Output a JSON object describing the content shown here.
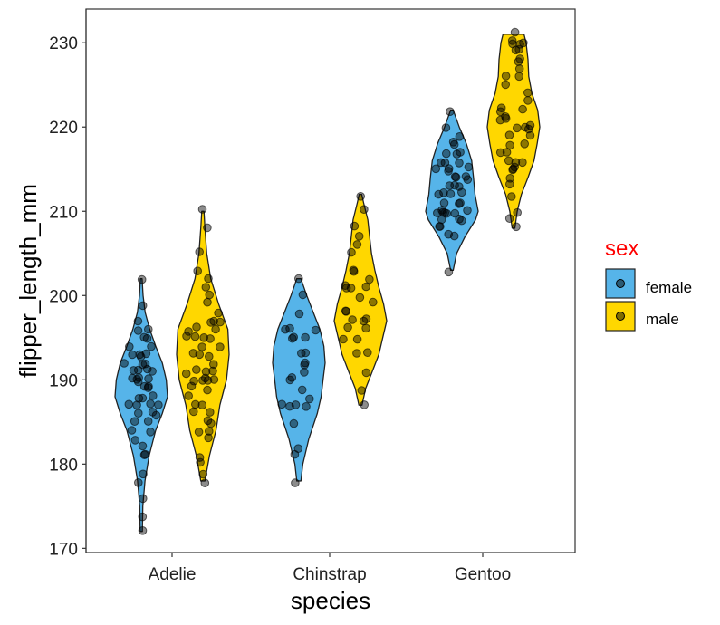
{
  "chart_data": {
    "type": "violin",
    "title": "",
    "xlabel": "species",
    "ylabel": "flipper_length_mm",
    "categories": [
      "Adelie",
      "Chinstrap",
      "Gentoo"
    ],
    "ylim": [
      169.5,
      234
    ],
    "yticks": [
      170,
      180,
      190,
      200,
      210,
      220,
      230
    ],
    "grid": false,
    "legend": {
      "title": "sex",
      "title_color": "#ff0000",
      "position": "right",
      "entries": [
        "female",
        "male"
      ]
    },
    "colors": {
      "female": "#56B4E9",
      "male": "#FFD700",
      "outline": "#222222",
      "points": "#000000"
    },
    "series": [
      {
        "name": "female",
        "groups": {
          "Adelie": {
            "range": [
              172,
              202
            ],
            "density": [
              [
                172,
                0.04
              ],
              [
                175,
                0.06
              ],
              [
                178,
                0.14
              ],
              [
                181,
                0.3
              ],
              [
                184,
                0.55
              ],
              [
                186,
                0.8
              ],
              [
                188,
                1.0
              ],
              [
                190,
                0.95
              ],
              [
                192,
                0.8
              ],
              [
                194,
                0.55
              ],
              [
                196,
                0.32
              ],
              [
                198,
                0.15
              ],
              [
                200,
                0.07
              ],
              [
                202,
                0.03
              ]
            ],
            "points": [
              172,
              174,
              176,
              178,
              179,
              181,
              181,
              182,
              183,
              184,
              184,
              185,
              185,
              186,
              186,
              186,
              187,
              187,
              187,
              187,
              188,
              188,
              188,
              189,
              189,
              189,
              190,
              190,
              190,
              190,
              190,
              191,
              191,
              191,
              191,
              192,
              192,
              192,
              193,
              193,
              193,
              193,
              194,
              194,
              195,
              195,
              196,
              196,
              197,
              199,
              202
            ]
          },
          "Chinstrap": {
            "range": [
              178,
              202
            ],
            "density": [
              [
                178,
                0.08
              ],
              [
                180,
                0.15
              ],
              [
                183,
                0.38
              ],
              [
                186,
                0.7
              ],
              [
                188,
                0.85
              ],
              [
                190,
                0.92
              ],
              [
                192,
                1.0
              ],
              [
                194,
                0.95
              ],
              [
                196,
                0.8
              ],
              [
                198,
                0.55
              ],
              [
                200,
                0.3
              ],
              [
                202,
                0.08
              ]
            ],
            "points": [
              178,
              181,
              182,
              185,
              187,
              187,
              187,
              187,
              188,
              189,
              190,
              190,
              191,
              192,
              192,
              193,
              193,
              195,
              195,
              195,
              196,
              196,
              196,
              198,
              200,
              202
            ]
          },
          "Gentoo": {
            "range": [
              203,
              222
            ],
            "density": [
              [
                203,
                0.05
              ],
              [
                205,
                0.18
              ],
              [
                207,
                0.5
              ],
              [
                209,
                0.9
              ],
              [
                210,
                1.0
              ],
              [
                212,
                0.88
              ],
              [
                214,
                0.82
              ],
              [
                216,
                0.75
              ],
              [
                218,
                0.55
              ],
              [
                220,
                0.28
              ],
              [
                222,
                0.05
              ]
            ],
            "points": [
              203,
              207,
              207,
              208,
              208,
              209,
              209,
              209,
              210,
              210,
              210,
              210,
              210,
              210,
              210,
              211,
              211,
              211,
              212,
              212,
              212,
              212,
              213,
              213,
              213,
              214,
              214,
              214,
              214,
              215,
              215,
              215,
              215,
              216,
              216,
              216,
              217,
              217,
              217,
              218,
              218,
              219,
              220,
              222
            ]
          }
        }
      },
      {
        "name": "male",
        "groups": {
          "Adelie": {
            "range": [
              178,
              210
            ],
            "density": [
              [
                178,
                0.08
              ],
              [
                181,
                0.25
              ],
              [
                184,
                0.5
              ],
              [
                187,
                0.65
              ],
              [
                190,
                0.9
              ],
              [
                193,
                1.0
              ],
              [
                196,
                0.95
              ],
              [
                199,
                0.6
              ],
              [
                202,
                0.3
              ],
              [
                205,
                0.15
              ],
              [
                208,
                0.08
              ],
              [
                210,
                0.04
              ]
            ],
            "points": [
              178,
              179,
              180,
              181,
              183,
              184,
              184,
              185,
              185,
              186,
              186,
              187,
              187,
              188,
              189,
              189,
              190,
              190,
              190,
              190,
              190,
              191,
              191,
              191,
              191,
              192,
              193,
              193,
              193,
              194,
              194,
              195,
              195,
              195,
              195,
              196,
              196,
              196,
              197,
              197,
              197,
              198,
              199,
              200,
              201,
              202,
              203,
              205,
              208,
              210
            ]
          },
          "Chinstrap": {
            "range": [
              187,
              212
            ],
            "density": [
              [
                187,
                0.06
              ],
              [
                189,
                0.2
              ],
              [
                191,
                0.45
              ],
              [
                193,
                0.7
              ],
              [
                195,
                0.85
              ],
              [
                197,
                1.0
              ],
              [
                199,
                0.88
              ],
              [
                201,
                0.7
              ],
              [
                203,
                0.55
              ],
              [
                205,
                0.42
              ],
              [
                207,
                0.35
              ],
              [
                209,
                0.28
              ],
              [
                211,
                0.12
              ],
              [
                212,
                0.05
              ]
            ],
            "points": [
              187,
              189,
              191,
              193,
              193,
              195,
              195,
              196,
              196,
              197,
              197,
              197,
              198,
              198,
              199,
              200,
              201,
              201,
              201,
              201,
              202,
              203,
              203,
              205,
              206,
              207,
              208,
              210,
              212
            ]
          },
          "Gentoo": {
            "range": [
              208,
              231
            ],
            "density": [
              [
                208,
                0.05
              ],
              [
                210,
                0.14
              ],
              [
                212,
                0.3
              ],
              [
                214,
                0.55
              ],
              [
                216,
                0.78
              ],
              [
                218,
                0.9
              ],
              [
                220,
                1.0
              ],
              [
                222,
                0.92
              ],
              [
                224,
                0.7
              ],
              [
                226,
                0.58
              ],
              [
                228,
                0.55
              ],
              [
                230,
                0.48
              ],
              [
                231,
                0.4
              ]
            ],
            "points": [
              208,
              209,
              210,
              212,
              213,
              214,
              215,
              215,
              215,
              216,
              216,
              216,
              217,
              217,
              218,
              218,
              219,
              219,
              220,
              220,
              220,
              220,
              221,
              221,
              221,
              222,
              222,
              222,
              223,
              224,
              225,
              226,
              226,
              227,
              228,
              228,
              229,
              229,
              230,
              230,
              230,
              230,
              231
            ]
          }
        }
      }
    ]
  }
}
